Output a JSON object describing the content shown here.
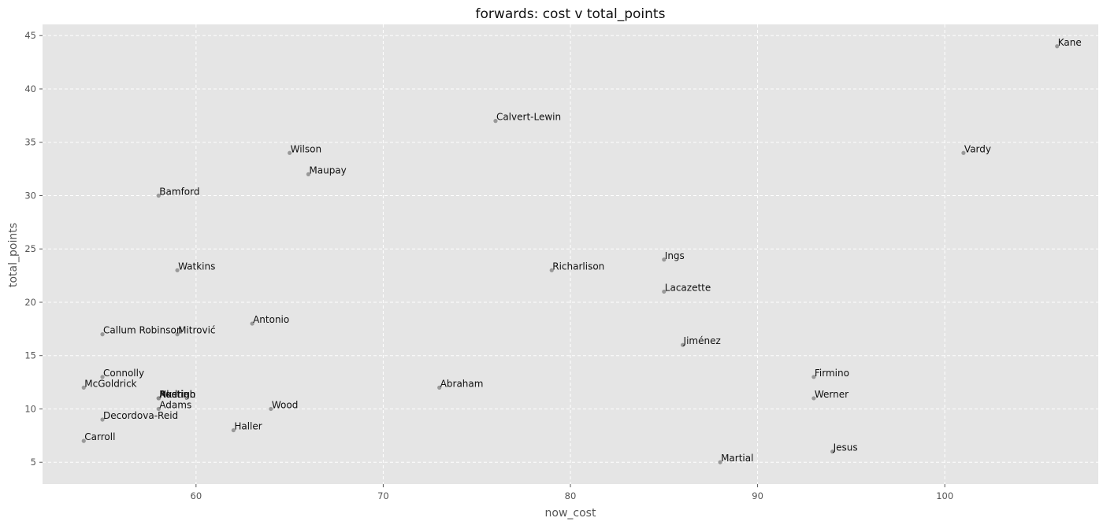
{
  "chart_data": {
    "type": "scatter",
    "title": "forwards: cost v total_points",
    "xlabel": "now_cost",
    "ylabel": "total_points",
    "xlim": [
      51.8,
      108.2
    ],
    "ylim": [
      2.95,
      46.05
    ],
    "xticks": [
      60,
      70,
      80,
      90,
      100
    ],
    "yticks": [
      5,
      10,
      15,
      20,
      25,
      30,
      35,
      40,
      45
    ],
    "grid": true,
    "legend": "none",
    "colors": {
      "plot_background": "#e5e5e5",
      "grid": "#ffffff",
      "point": "#8c8c8c"
    },
    "points": [
      {
        "name": "Kane",
        "x": 106,
        "y": 44
      },
      {
        "name": "Calvert-Lewin",
        "x": 76,
        "y": 37
      },
      {
        "name": "Vardy",
        "x": 101,
        "y": 34
      },
      {
        "name": "Wilson",
        "x": 65,
        "y": 34
      },
      {
        "name": "Maupay",
        "x": 66,
        "y": 32
      },
      {
        "name": "Bamford",
        "x": 58,
        "y": 30
      },
      {
        "name": "Ings",
        "x": 85,
        "y": 24
      },
      {
        "name": "Watkins",
        "x": 59,
        "y": 23
      },
      {
        "name": "Richarlison",
        "x": 79,
        "y": 23
      },
      {
        "name": "Lacazette",
        "x": 85,
        "y": 21
      },
      {
        "name": "Antonio",
        "x": 63,
        "y": 18
      },
      {
        "name": "Callum Robinson",
        "x": 55,
        "y": 17
      },
      {
        "name": "Mitrović",
        "x": 59,
        "y": 17
      },
      {
        "name": "Jiménez",
        "x": 86,
        "y": 16
      },
      {
        "name": "Connolly",
        "x": 55,
        "y": 13
      },
      {
        "name": "Firmino",
        "x": 93,
        "y": 13
      },
      {
        "name": "McGoldrick",
        "x": 54,
        "y": 12
      },
      {
        "name": "Abraham",
        "x": 73,
        "y": 12
      },
      {
        "name": "Austin",
        "x": 58,
        "y": 11
      },
      {
        "name": "Nketiah",
        "x": 58,
        "y": 11
      },
      {
        "name": "Rodrigo",
        "x": 58,
        "y": 11
      },
      {
        "name": "Werner",
        "x": 93,
        "y": 11
      },
      {
        "name": "Adams",
        "x": 58,
        "y": 10
      },
      {
        "name": "Wood",
        "x": 64,
        "y": 10
      },
      {
        "name": "Decordova-Reid",
        "x": 55,
        "y": 9
      },
      {
        "name": "Haller",
        "x": 62,
        "y": 8
      },
      {
        "name": "Carroll",
        "x": 54,
        "y": 7
      },
      {
        "name": "Jesus",
        "x": 94,
        "y": 6
      },
      {
        "name": "Martial",
        "x": 88,
        "y": 5
      }
    ]
  }
}
